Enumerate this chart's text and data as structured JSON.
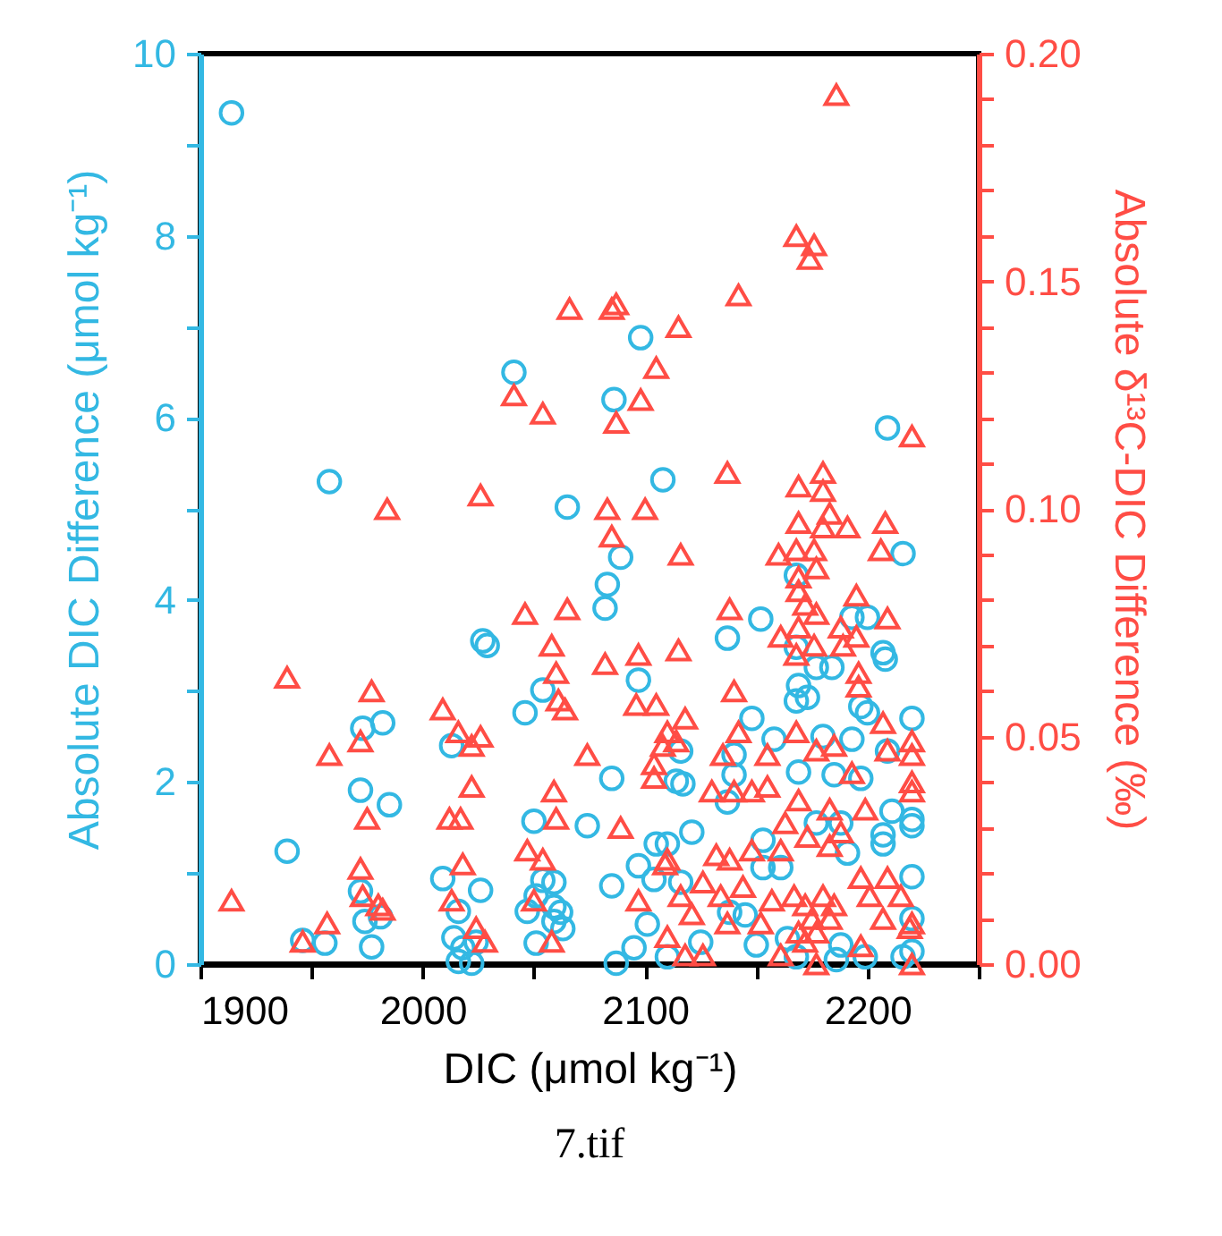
{
  "chart_data": {
    "type": "scatter",
    "xlabel": "DIC (μmol kg⁻¹)",
    "ylabel": "Absolute DIC Difference (μmol kg⁻¹)",
    "y2label": "Absolute δ¹³C-DIC Difference (‰)",
    "annotations": [
      "7.tif"
    ],
    "xlim": [
      1900,
      2250
    ],
    "xticks": [
      1900,
      {
        "value": 1950,
        "label": null
      },
      2000,
      {
        "value": 2050,
        "label": null
      },
      2100,
      {
        "value": 2150,
        "label": null
      },
      2200,
      {
        "value": 2250,
        "label": null
      }
    ],
    "ylim": [
      0,
      10
    ],
    "yticks": [
      0,
      {
        "value": 1,
        "label": null
      },
      2,
      {
        "value": 3,
        "label": null
      },
      4,
      {
        "value": 5,
        "label": null
      },
      6,
      {
        "value": 7,
        "label": null
      },
      8,
      {
        "value": 9,
        "label": null
      },
      10
    ],
    "y2lim": [
      0,
      0.2
    ],
    "y2ticks": [
      {
        "value": 0,
        "label": "0.00"
      },
      {
        "value": 0.01,
        "label": null
      },
      {
        "value": 0.02,
        "label": null
      },
      {
        "value": 0.03,
        "label": null
      },
      {
        "value": 0.04,
        "label": null
      },
      {
        "value": 0.05,
        "label": "0.05"
      },
      {
        "value": 0.06,
        "label": null
      },
      {
        "value": 0.07,
        "label": null
      },
      {
        "value": 0.08,
        "label": null
      },
      {
        "value": 0.09,
        "label": null
      },
      {
        "value": 0.1,
        "label": "0.10"
      },
      {
        "value": 0.11,
        "label": null
      },
      {
        "value": 0.12,
        "label": null
      },
      {
        "value": 0.13,
        "label": null
      },
      {
        "value": 0.14,
        "label": null
      },
      {
        "value": 0.15,
        "label": "0.15"
      },
      {
        "value": 0.16,
        "label": null
      },
      {
        "value": 0.17,
        "label": null
      },
      {
        "value": 0.18,
        "label": null
      },
      {
        "value": 0.19,
        "label": null
      },
      {
        "value": 0.2,
        "label": "0.20"
      }
    ],
    "grid": false,
    "series": [
      {
        "marker": "circle",
        "color": "#33b8e3",
        "x": [
          1914,
          2041,
          2086,
          1958,
          2065,
          2098,
          2209,
          2108,
          2089,
          2083,
          2082,
          2027,
          2029,
          2054,
          2046,
          1973,
          1982,
          2013,
          2085,
          1972,
          1985,
          2050,
          2074,
          1939,
          2009,
          2054,
          2059,
          2085,
          2026,
          1972,
          2016,
          2047,
          2051,
          2059,
          2062,
          2059,
          2063,
          1974,
          1981,
          1946,
          1956,
          1977,
          2014,
          2018,
          2016,
          2022,
          2024,
          2051,
          2087,
          2216,
          2168,
          2152,
          2137,
          2193,
          2200,
          2207,
          2208,
          2168,
          2177,
          2184,
          2097,
          2169,
          2173,
          2168,
          2148,
          2197,
          2200,
          2220,
          2116,
          2114,
          2117,
          2140,
          2158,
          2180,
          2193,
          2209,
          2137,
          2140,
          2169,
          2197,
          2211,
          2220,
          2220,
          2185,
          2121,
          2105,
          2110,
          2097,
          2104,
          2116,
          2153,
          2153,
          2161,
          2177,
          2188,
          2191,
          2207,
          2207,
          2220,
          2101,
          2095,
          2110,
          2125,
          2138,
          2145,
          2150,
          2164,
          2168,
          2188,
          2186,
          2199,
          2220,
          2220,
          2216
        ],
        "values": [
          9.35,
          6.5,
          6.2,
          5.3,
          5.02,
          6.88,
          5.89,
          5.32,
          4.47,
          4.17,
          3.91,
          3.55,
          3.5,
          3.01,
          2.76,
          2.59,
          2.65,
          2.4,
          2.04,
          1.91,
          1.75,
          1.57,
          1.52,
          1.24,
          0.94,
          0.92,
          0.9,
          0.86,
          0.81,
          0.8,
          0.58,
          0.58,
          0.75,
          0.63,
          0.57,
          0.47,
          0.39,
          0.47,
          0.52,
          0.26,
          0.23,
          0.19,
          0.29,
          0.18,
          0.03,
          0.01,
          0.24,
          0.23,
          0.01,
          4.51,
          4.27,
          3.79,
          3.58,
          3.81,
          3.81,
          3.42,
          3.35,
          3.48,
          3.26,
          3.26,
          3.12,
          3.06,
          2.93,
          2.89,
          2.7,
          2.83,
          2.76,
          2.7,
          2.34,
          2.01,
          1.98,
          2.3,
          2.47,
          2.5,
          2.47,
          2.34,
          1.78,
          2.08,
          2.11,
          2.04,
          1.68,
          1.59,
          1.52,
          2.08,
          1.45,
          1.32,
          1.32,
          1.08,
          0.93,
          0.9,
          1.36,
          1.06,
          1.06,
          1.55,
          1.55,
          1.22,
          1.42,
          1.32,
          0.96,
          0.44,
          0.18,
          0.08,
          0.24,
          0.57,
          0.54,
          0.21,
          0.28,
          0.08,
          0.21,
          0.05,
          0.08,
          0.5,
          0.14,
          0.08
        ]
      },
      {
        "marker": "triangle",
        "axis": "y2",
        "color": "#ff4d45",
        "x": [
          2066,
          2085,
          2087,
          2041,
          2054,
          2087,
          1984,
          2026,
          2083,
          2186,
          2168,
          2176,
          2174,
          2142,
          2115,
          2105,
          2098,
          2220,
          2137,
          2169,
          2180,
          2180,
          2100,
          2085,
          2046,
          2065,
          2058,
          2060,
          2082,
          1939,
          1977,
          2061,
          2064,
          2009,
          2016,
          2026,
          2022,
          1972,
          1958,
          2074,
          2022,
          2059,
          1975,
          2012,
          2017,
          2060,
          2089,
          2047,
          2054,
          2018,
          1972,
          1973,
          1914,
          1980,
          1982,
          2013,
          2050,
          1957,
          1946,
          2024,
          2028,
          2058,
          2116,
          2169,
          2183,
          2180,
          2191,
          2208,
          2160,
          2168,
          2176,
          2169,
          2177,
          2206,
          2169,
          2172,
          2177,
          2138,
          2195,
          2209,
          2188,
          2161,
          2169,
          2176,
          2189,
          2195,
          2168,
          2097,
          2115,
          2196,
          2196,
          2140,
          2096,
          2105,
          2118,
          2110,
          2108,
          2114,
          2104,
          2104,
          2135,
          2155,
          2142,
          2168,
          2177,
          2185,
          2207,
          2209,
          2220,
          2220,
          2130,
          2140,
          2148,
          2155,
          2169,
          2183,
          2199,
          2193,
          2220,
          2220,
          2110,
          2109,
          2132,
          2138,
          2148,
          2161,
          2163,
          2173,
          2183,
          2188,
          2197,
          2209,
          2201,
          2215,
          2207,
          2220,
          2219,
          2097,
          2116,
          2121,
          2126,
          2134,
          2144,
          2157,
          2152,
          2137,
          2167,
          2172,
          2175,
          2180,
          2169,
          2177,
          2183,
          2185,
          2172,
          2110,
          2118,
          2126,
          2161,
          2177,
          2197,
          2220
        ],
        "values": [
          0.144,
          0.144,
          0.145,
          0.125,
          0.121,
          0.119,
          0.1,
          0.103,
          0.1,
          0.191,
          0.16,
          0.158,
          0.155,
          0.147,
          0.14,
          0.131,
          0.124,
          0.116,
          0.108,
          0.105,
          0.108,
          0.104,
          0.1,
          0.094,
          0.077,
          0.078,
          0.07,
          0.064,
          0.066,
          0.063,
          0.06,
          0.058,
          0.056,
          0.056,
          0.051,
          0.05,
          0.048,
          0.049,
          0.046,
          0.046,
          0.039,
          0.038,
          0.032,
          0.032,
          0.032,
          0.032,
          0.03,
          0.025,
          0.023,
          0.022,
          0.021,
          0.015,
          0.014,
          0.013,
          0.012,
          0.014,
          0.014,
          0.009,
          0.005,
          0.008,
          0.005,
          0.005,
          0.09,
          0.097,
          0.099,
          0.096,
          0.096,
          0.097,
          0.09,
          0.091,
          0.091,
          0.085,
          0.087,
          0.091,
          0.082,
          0.079,
          0.077,
          0.078,
          0.081,
          0.076,
          0.074,
          0.072,
          0.074,
          0.07,
          0.07,
          0.072,
          0.068,
          0.068,
          0.069,
          0.064,
          0.061,
          0.06,
          0.057,
          0.057,
          0.054,
          0.051,
          0.048,
          0.049,
          0.044,
          0.041,
          0.046,
          0.046,
          0.051,
          0.051,
          0.047,
          0.048,
          0.053,
          0.047,
          0.049,
          0.046,
          0.038,
          0.038,
          0.038,
          0.039,
          0.036,
          0.034,
          0.034,
          0.042,
          0.04,
          0.038,
          0.023,
          0.022,
          0.024,
          0.023,
          0.025,
          0.025,
          0.031,
          0.028,
          0.026,
          0.029,
          0.019,
          0.019,
          0.015,
          0.015,
          0.01,
          0.009,
          0.008,
          0.014,
          0.015,
          0.011,
          0.018,
          0.015,
          0.017,
          0.014,
          0.009,
          0.009,
          0.015,
          0.013,
          0.01,
          0.015,
          0.007,
          0.007,
          0.01,
          0.013,
          0.005,
          0.006,
          0.002,
          0.002,
          0.002,
          0.0,
          0.004,
          0.0
        ]
      }
    ]
  }
}
